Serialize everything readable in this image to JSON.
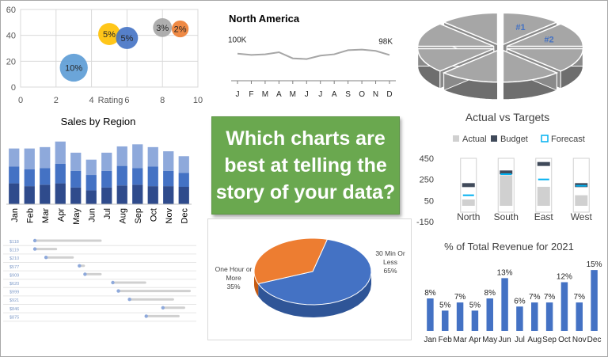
{
  "banner": {
    "lines": [
      "Which charts are",
      "best at telling the",
      "story of your data?"
    ]
  },
  "chart_data": [
    {
      "type": "bubble",
      "title": "",
      "xlabel": "Rating",
      "ylabel": "",
      "xlim": [
        0,
        10
      ],
      "ylim": [
        0,
        60
      ],
      "xticks": [
        "0",
        "2",
        "4",
        "6",
        "8",
        "10"
      ],
      "yticks": [
        "0",
        "20",
        "40",
        "60"
      ],
      "grid": true,
      "points": [
        {
          "x": 3,
          "y": 15,
          "size": 10,
          "label": "10%",
          "color": "#5b9bd5"
        },
        {
          "x": 5,
          "y": 41,
          "size": 5,
          "label": "5%",
          "color": "#ffc000"
        },
        {
          "x": 6,
          "y": 38,
          "size": 5,
          "label": "5%",
          "color": "#4472c4"
        },
        {
          "x": 8,
          "y": 46,
          "size": 3,
          "label": "3%",
          "color": "#a5a5a5"
        },
        {
          "x": 9,
          "y": 45,
          "size": 2,
          "label": "2%",
          "color": "#ed7d31"
        }
      ]
    },
    {
      "type": "line",
      "title": "North America",
      "categories": [
        "J",
        "F",
        "M",
        "A",
        "M",
        "J",
        "J",
        "A",
        "S",
        "O",
        "N",
        "D"
      ],
      "values": [
        100,
        98,
        99,
        102,
        93,
        92,
        97,
        99,
        105,
        106,
        104,
        98
      ],
      "labels": {
        "first": "100K",
        "last": "98K"
      },
      "ylim": [
        60,
        130
      ],
      "color": "#a6a6a6"
    },
    {
      "type": "pie",
      "title": "",
      "style": "3d-exploded",
      "slices": [
        {
          "label": "#1",
          "value": 1
        },
        {
          "label": "#2",
          "value": 1
        },
        {
          "label": "",
          "value": 1
        },
        {
          "label": "",
          "value": 1
        },
        {
          "label": "",
          "value": 1
        },
        {
          "label": "",
          "value": 1
        },
        {
          "label": "",
          "value": 1
        },
        {
          "label": "",
          "value": 1
        }
      ],
      "color": "#a6a6a6",
      "label_color": "#4472c4"
    },
    {
      "type": "bar",
      "stacked": true,
      "title": "Sales by Region",
      "categories": [
        "Jan",
        "Feb",
        "Mar",
        "Apr",
        "May",
        "Jun",
        "Jul",
        "Aug",
        "Sep",
        "Oct",
        "Nov",
        "Dec"
      ],
      "series": [
        {
          "name": "",
          "values": [
            30,
            26,
            28,
            30,
            24,
            20,
            24,
            27,
            28,
            26,
            26,
            25
          ],
          "color": "#2f4b8c"
        },
        {
          "name": "",
          "values": [
            24,
            24,
            24,
            28,
            24,
            22,
            24,
            28,
            24,
            28,
            22,
            20
          ],
          "color": "#4472c4"
        },
        {
          "name": "",
          "values": [
            26,
            30,
            30,
            32,
            26,
            22,
            26,
            28,
            34,
            28,
            28,
            24
          ],
          "color": "#8ea9db"
        }
      ],
      "ylim": [
        0,
        100
      ],
      "legend": "none"
    },
    {
      "type": "gantt",
      "title": "",
      "rows": [
        {
          "label": "$118",
          "start": 2,
          "end": 14
        },
        {
          "label": "$119",
          "start": 2,
          "end": 6
        },
        {
          "label": "$210",
          "start": 4,
          "end": 9
        },
        {
          "label": "$577",
          "start": 10,
          "end": 11
        },
        {
          "label": "$909",
          "start": 11,
          "end": 14
        },
        {
          "label": "$620",
          "start": 16,
          "end": 22
        },
        {
          "label": "$999",
          "start": 17,
          "end": 30
        },
        {
          "label": "$921",
          "start": 19,
          "end": 27
        },
        {
          "label": "$846",
          "start": 25,
          "end": 29
        },
        {
          "label": "$875",
          "start": 22,
          "end": 28
        }
      ],
      "xlim": [
        0,
        31
      ],
      "colors": {
        "start": "#8ea9db",
        "bar": "#d0d0d0"
      }
    },
    {
      "type": "bar",
      "title": "Actual vs Targets",
      "categories": [
        "North",
        "South",
        "East",
        "West"
      ],
      "series": [
        {
          "name": "Actual",
          "values": [
            60,
            290,
            180,
            100
          ],
          "color": "#d0d0d0"
        },
        {
          "name": "Budget",
          "values": [
            200,
            320,
            400,
            200
          ],
          "color": "#404a5a"
        },
        {
          "name": "Forecast",
          "values": [
            100,
            300,
            250,
            190
          ],
          "color": "#00b0f0"
        }
      ],
      "yticks": [
        "450",
        "250",
        "50",
        "-150"
      ],
      "ylim": [
        -150,
        450
      ],
      "legend": "top"
    },
    {
      "type": "pie",
      "style": "3d",
      "title": "",
      "slices": [
        {
          "label": "30 Min Or Less",
          "value": 65,
          "display": "65%",
          "color": "#4472c4"
        },
        {
          "label": "One Hour or More",
          "value": 35,
          "display": "35%",
          "color": "#ed7d31"
        }
      ]
    },
    {
      "type": "bar",
      "title": "% of Total Revenue for 2021",
      "categories": [
        "Jan",
        "Feb",
        "Mar",
        "Apr",
        "May",
        "Jun",
        "Jul",
        "Aug",
        "Sep",
        "Oct",
        "Nov",
        "Dec"
      ],
      "values": [
        8,
        5,
        7,
        5,
        8,
        13,
        6,
        7,
        7,
        12,
        7,
        15
      ],
      "data_labels": [
        "8%",
        "5%",
        "7%",
        "5%",
        "8%",
        "13%",
        "6%",
        "7%",
        "7%",
        "12%",
        "7%",
        "15%"
      ],
      "ylim": [
        0,
        16
      ],
      "color": "#4472c4"
    }
  ]
}
